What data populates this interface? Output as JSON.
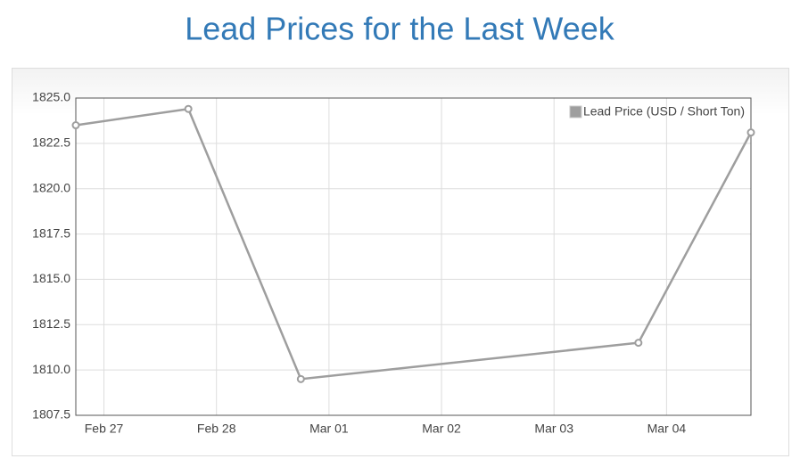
{
  "chart_data": {
    "type": "line",
    "title": "Lead Prices for the Last Week",
    "x": [
      -0.25,
      0.75,
      1.75,
      4.75,
      5.75
    ],
    "series": [
      {
        "name": "Lead Price (USD / Short Ton)",
        "color": "#9e9e9e",
        "values": [
          1823.5,
          1824.4,
          1809.5,
          1811.5,
          1823.1
        ]
      }
    ],
    "xlim": [
      -0.25,
      5.75
    ],
    "xticks": [
      {
        "value": 0,
        "label": "Feb 27"
      },
      {
        "value": 1,
        "label": "Feb 28"
      },
      {
        "value": 2,
        "label": "Mar 01"
      },
      {
        "value": 3,
        "label": "Mar 02"
      },
      {
        "value": 4,
        "label": "Mar 03"
      },
      {
        "value": 5,
        "label": "Mar 04"
      }
    ],
    "ylim": [
      1807.5,
      1825
    ],
    "yticks": [
      {
        "value": 1807.5,
        "label": "1807.5"
      },
      {
        "value": 1810,
        "label": "1810.0"
      },
      {
        "value": 1812.5,
        "label": "1812.5"
      },
      {
        "value": 1815,
        "label": "1815.0"
      },
      {
        "value": 1817.5,
        "label": "1817.5"
      },
      {
        "value": 1820,
        "label": "1820.0"
      },
      {
        "value": 1822.5,
        "label": "1822.5"
      },
      {
        "value": 1825,
        "label": "1825.0"
      }
    ],
    "grid": true,
    "legend": "top-right"
  }
}
